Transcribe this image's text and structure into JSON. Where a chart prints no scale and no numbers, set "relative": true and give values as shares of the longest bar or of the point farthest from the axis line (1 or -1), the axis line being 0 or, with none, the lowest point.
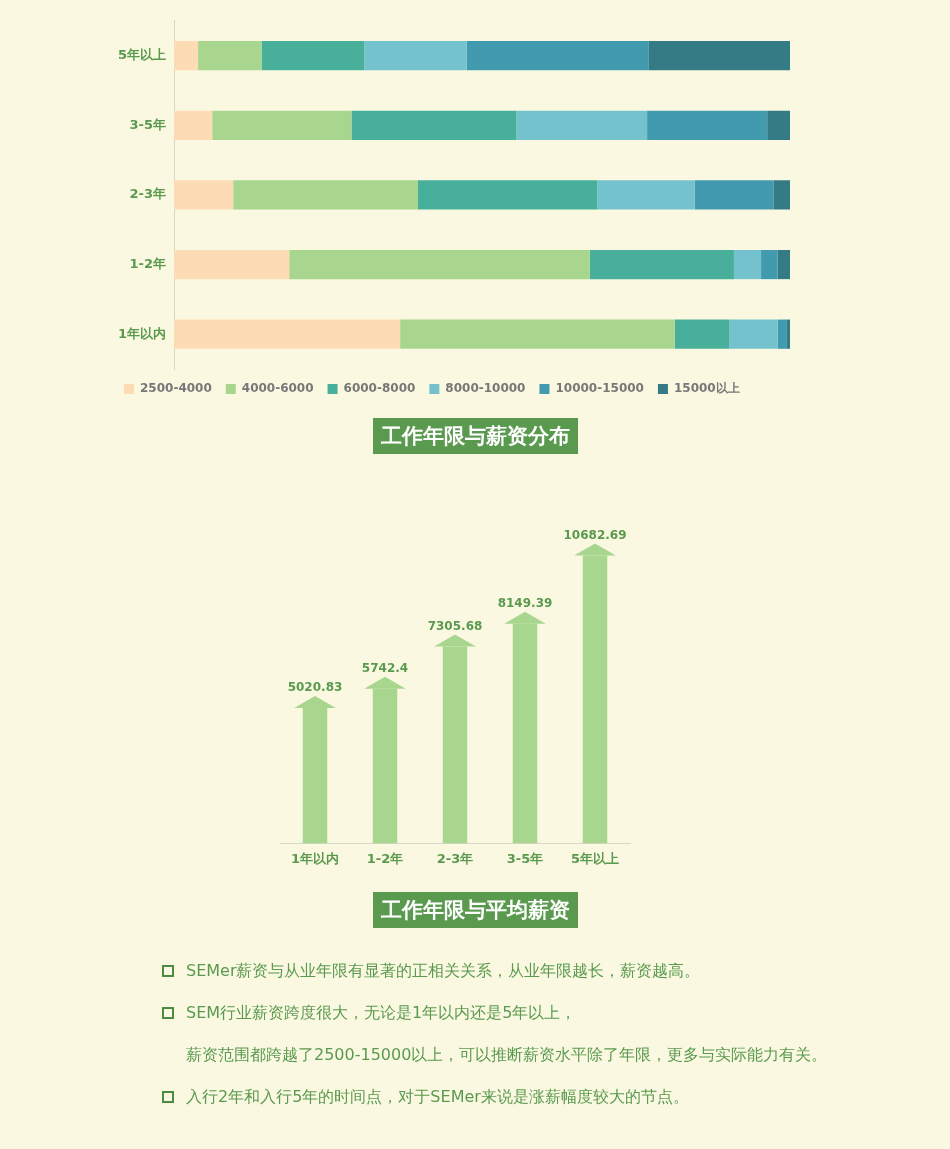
{
  "chart_data": [
    {
      "type": "bar",
      "orientation": "horizontal",
      "stacked": true,
      "relative": true,
      "title": "工作年限与薪资分布",
      "categories": [
        "5年以上",
        "3-5年",
        "2-3年",
        "1-2年",
        "1年以内"
      ],
      "series": [
        {
          "name": "2500-4000",
          "color": "#fddcb5",
          "values": [
            0.039,
            0.062,
            0.096,
            0.187,
            0.367
          ]
        },
        {
          "name": "4000-6000",
          "color": "#a8d68f",
          "values": [
            0.103,
            0.226,
            0.3,
            0.488,
            0.446
          ]
        },
        {
          "name": "6000-8000",
          "color": "#48b09a",
          "values": [
            0.167,
            0.268,
            0.291,
            0.234,
            0.088
          ]
        },
        {
          "name": "8000-10000",
          "color": "#75c2cf",
          "values": [
            0.166,
            0.212,
            0.158,
            0.044,
            0.079
          ]
        },
        {
          "name": "10000-15000",
          "color": "#429aae",
          "values": [
            0.295,
            0.195,
            0.128,
            0.027,
            0.015
          ]
        },
        {
          "name": "15000以上",
          "color": "#357b86",
          "values": [
            0.23,
            0.037,
            0.027,
            0.02,
            0.005
          ]
        }
      ],
      "legend": "bottom"
    },
    {
      "type": "bar",
      "title": "工作年限与平均薪资",
      "categories": [
        "1年以内",
        "1-2年",
        "2-3年",
        "3-5年",
        "5年以上"
      ],
      "values": [
        5020.83,
        5742.4,
        7305.68,
        8149.39,
        10682.69
      ],
      "color": "#a8d68f",
      "data_labels": true,
      "legend": false,
      "tick_labels": "x",
      "annotations": [
        "SEMer薪资与从业年限有显著的正相关关系，从业年限越长，薪资越高。",
        "SEM行业薪资跨度很大，无论是1年以内还是5年以上，",
        "薪资范围都跨越了2500-15000以上，可以推断薪资水平除了年限，更多与实际能力有关。",
        "入行2年和入行5年的时间点，对于SEMer来说是涨薪幅度较大的节点。"
      ]
    }
  ]
}
